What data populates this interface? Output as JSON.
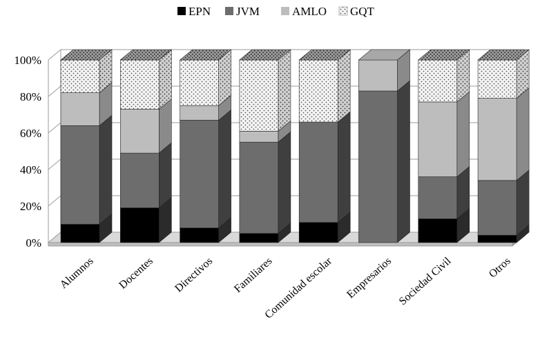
{
  "chart_data": {
    "type": "bar",
    "stacked": true,
    "three_d": true,
    "title": "",
    "xlabel": "",
    "ylabel": "",
    "ylim": [
      0,
      100
    ],
    "yticks": [
      "0%",
      "20%",
      "40%",
      "60%",
      "80%",
      "100%"
    ],
    "legend_position": "top",
    "categories": [
      "Alumnos",
      "Docentes",
      "Directivos",
      "Familiares",
      "Comunidad escolar",
      "Empresarios",
      "Sociedad Civil",
      "Otros"
    ],
    "series": [
      {
        "name": "EPN",
        "color": "#000000",
        "values": [
          10,
          19,
          8,
          5,
          11,
          0,
          13,
          4
        ]
      },
      {
        "name": "JVM",
        "color": "#6d6d6d",
        "values": [
          54,
          30,
          59,
          50,
          55,
          83,
          23,
          30
        ]
      },
      {
        "name": "AMLO",
        "color": "#bdbdbd",
        "values": [
          18,
          24,
          8,
          6,
          0,
          17,
          41,
          45
        ]
      },
      {
        "name": "GQT",
        "color": "#f2f2f2",
        "values": [
          18,
          27,
          25,
          39,
          34,
          0,
          23,
          21
        ]
      }
    ]
  }
}
